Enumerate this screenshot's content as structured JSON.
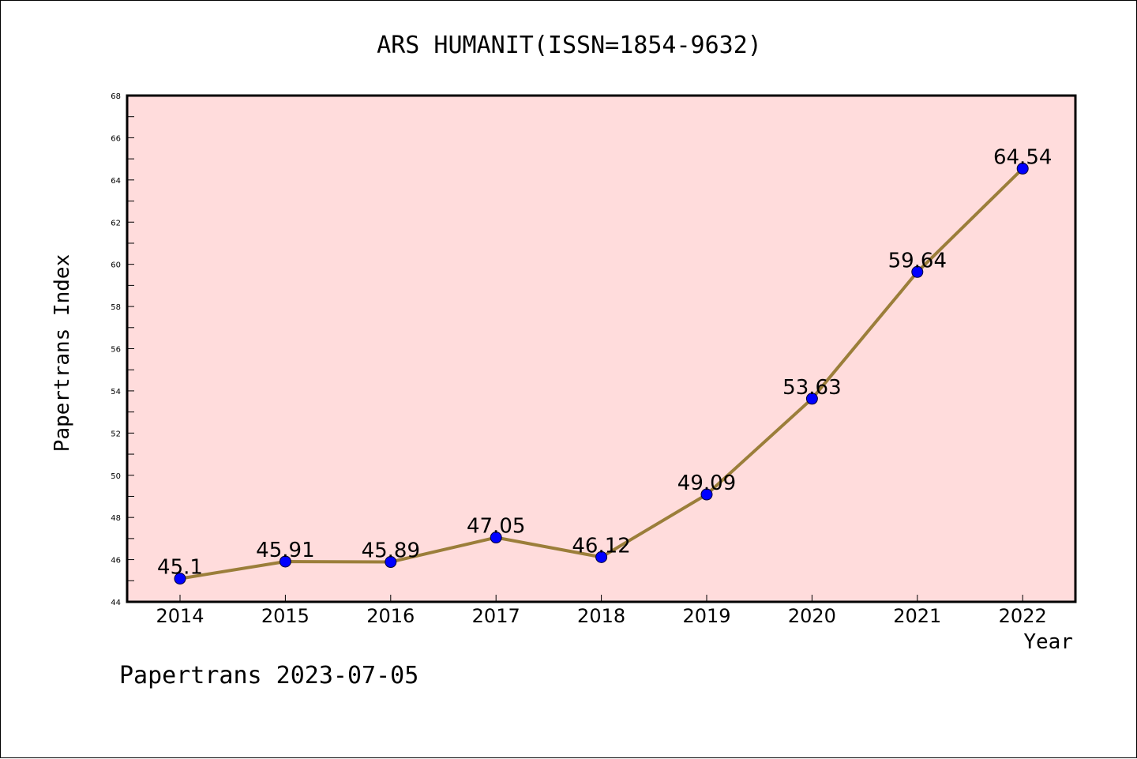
{
  "chart_data": {
    "type": "line",
    "title": "ARS HUMANIT(ISSN=1854-9632)",
    "xlabel": "Year",
    "ylabel": "Papertrans Index",
    "footer": "Papertrans 2023-07-05",
    "x": [
      "2014",
      "2015",
      "2016",
      "2017",
      "2018",
      "2019",
      "2020",
      "2021",
      "2022"
    ],
    "series": [
      {
        "values": [
          45.1,
          45.91,
          45.89,
          47.05,
          46.12,
          49.09,
          53.63,
          59.64,
          64.54
        ],
        "labels": [
          "45.1",
          "45.91",
          "45.89",
          "47.05",
          "46.12",
          "49.09",
          "53.63",
          "59.64",
          "64.54"
        ]
      }
    ],
    "ylim": [
      44,
      68
    ],
    "yticks": [
      "44",
      "46",
      "48",
      "50",
      "52",
      "54",
      "56",
      "58",
      "60",
      "62",
      "64",
      "66",
      "68"
    ],
    "grid": false,
    "legend": "none",
    "colors": {
      "plot_background": "#ffdcdc",
      "line": "#9b7e3a",
      "marker": "#0000ff"
    }
  }
}
